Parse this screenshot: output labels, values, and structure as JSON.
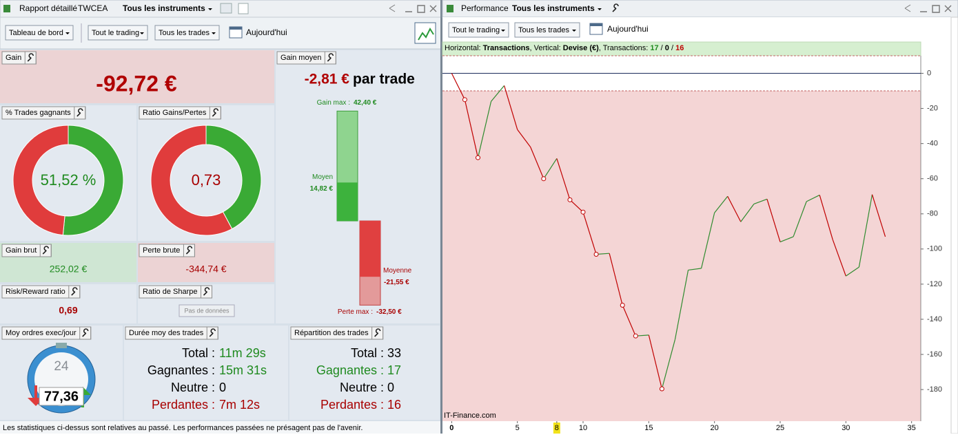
{
  "left_window": {
    "tabs": [
      "Rapport détaillé",
      "TWCEA",
      "Tous les instruments"
    ],
    "toolbar": [
      "Tableau de bord",
      "Tout le trading",
      "Tous les trades",
      "Aujourd'hui"
    ],
    "gain": {
      "title": "Gain",
      "value": "-92,72 €"
    },
    "gain_moyen": {
      "title": "Gain moyen",
      "value": "-2,81 €",
      "unit": "par trade",
      "gain_max": {
        "name": "Gain max :",
        "value": 42.4,
        "label": "42,40 €"
      },
      "moyen_gain": {
        "name": "Moyen",
        "value": 14.82,
        "label": "14,82 €"
      },
      "moyen_perte": {
        "name": "Moyenne",
        "value": -21.55,
        "label": "-21,55 €"
      },
      "perte_max": {
        "name": "Perte max :",
        "value": -32.5,
        "label": "-32,50 €"
      }
    },
    "win_rate": {
      "title": "% Trades gagnants",
      "value": 51.52,
      "label": "51,52 %"
    },
    "ratio": {
      "title": "Ratio Gains/Pertes",
      "value": 0.73,
      "label": "0,73"
    },
    "gain_brut": {
      "title": "Gain brut",
      "value": "252,02 €"
    },
    "perte_brute": {
      "title": "Perte brute",
      "value": "-344,74 €"
    },
    "risk_reward": {
      "title": "Risk/Reward ratio",
      "value": "0,69"
    },
    "sharpe": {
      "title": "Ratio de Sharpe",
      "button": "Pas de données"
    },
    "orders": {
      "title": "Moy ordres exec/jour",
      "dial": "24",
      "value": "77,36"
    },
    "duration": {
      "title": "Durée moy des trades",
      "rows": [
        [
          "Total :",
          "11m 29s"
        ],
        [
          "Gagnantes :",
          "15m 31s"
        ],
        [
          "Neutre :",
          "0"
        ],
        [
          "Perdantes :",
          "7m 12s"
        ]
      ]
    },
    "distribution": {
      "title": "Répartition des trades",
      "rows": [
        [
          "Total :",
          "33"
        ],
        [
          "Gagnantes :",
          "17"
        ],
        [
          "Neutre :",
          "0"
        ],
        [
          "Perdantes :",
          "16"
        ]
      ]
    },
    "footer": "Les statistiques ci-dessus sont relatives au passé. Les performances passées ne présagent pas de l'avenir."
  },
  "right_window": {
    "tabs": [
      "Performance",
      "Tous les instruments"
    ],
    "toolbar": [
      "Tout le trading",
      "Tous les trades",
      "Aujourd'hui"
    ],
    "watermark": "IT-Finance.com"
  },
  "chart_data": {
    "type": "line",
    "info": [
      "Horizontal: ",
      "Transactions",
      ", Vertical: ",
      "Devise (€)",
      ", Transactions: ",
      "17",
      " / ",
      "0",
      " / ",
      "16"
    ],
    "x": [
      0,
      1,
      2,
      3,
      4,
      5,
      6,
      7,
      8,
      9,
      10,
      11,
      12,
      13,
      14,
      15,
      16,
      17,
      18,
      19,
      20,
      21,
      22,
      23,
      24,
      25,
      26,
      27,
      28,
      29,
      30,
      31,
      32,
      33
    ],
    "values": [
      0,
      -15,
      -48,
      -16,
      -7,
      -32,
      -42,
      -60,
      -48.5,
      -72,
      -79,
      -103,
      -102.5,
      -132,
      -149.5,
      -149,
      -179.6,
      -151.5,
      -112,
      -111,
      -79.4,
      -70,
      -84.5,
      -74.4,
      -71.6,
      -96,
      -93,
      -73,
      -69.3,
      -94.7,
      -115.4,
      -110.3,
      -69,
      -93
    ],
    "xlim": [
      -0.7,
      35.7
    ],
    "ylim": [
      -198,
      10
    ],
    "xticks": [
      0,
      5,
      8,
      10,
      15,
      20,
      25,
      30,
      35
    ],
    "highlight_xtick": 8,
    "yticks": [
      0,
      -20,
      -40,
      -60,
      -80,
      -100,
      -120,
      -140,
      -160,
      -180
    ],
    "dashed_levels": [
      10,
      -10
    ],
    "up_color": "#2e8b2e",
    "down_color": "#c00000",
    "markers": [
      1,
      2,
      7,
      9,
      10,
      11,
      13,
      14,
      16
    ]
  }
}
